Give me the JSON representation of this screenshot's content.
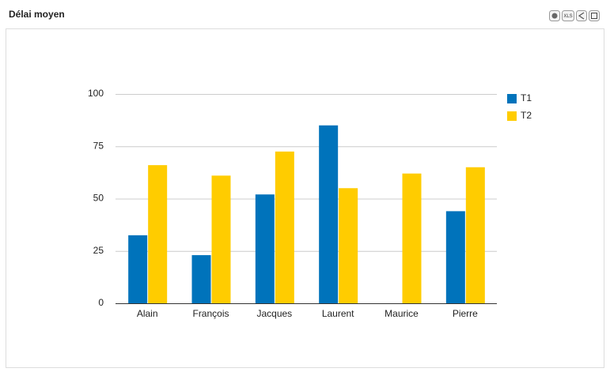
{
  "chart_data": {
    "type": "bar",
    "title": "Délai moyen",
    "categories": [
      "Alain",
      "François",
      "Jacques",
      "Laurent",
      "Maurice",
      "Pierre"
    ],
    "series": [
      {
        "name": "T1",
        "color": "#0073bb",
        "values": [
          32.5,
          23,
          52,
          85,
          null,
          44
        ]
      },
      {
        "name": "T2",
        "color": "#ffcc00",
        "values": [
          66,
          61,
          72.5,
          55,
          62,
          65
        ]
      }
    ],
    "ylim": [
      0,
      100
    ],
    "yticks": [
      0,
      25,
      50,
      75,
      100
    ],
    "grid": true,
    "legend": "right"
  },
  "toolbar": {
    "export_label": "XLS"
  }
}
